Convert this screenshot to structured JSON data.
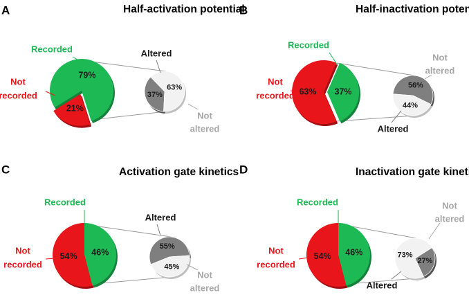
{
  "chart_data": [
    {
      "type": "pie",
      "panel_letter": "A",
      "title": "Half-activation potential",
      "main_pie": {
        "slices": [
          {
            "name": "recorded",
            "label": "Recorded",
            "value": 79,
            "value_label": "79%",
            "color": "#1db954"
          },
          {
            "name": "not-recorded",
            "label": "Not recorded",
            "label_lines": [
              "Not",
              "recorded"
            ],
            "value": 21,
            "value_label": "21%",
            "color": "#e8151b"
          }
        ]
      },
      "sub_pie": {
        "slices": [
          {
            "name": "altered",
            "label": "Altered",
            "value": 37,
            "value_label": "37%",
            "color": "#7f7f7f"
          },
          {
            "name": "not-altered",
            "label": "Not altered",
            "label_lines": [
              "Not",
              "altered"
            ],
            "value": 63,
            "value_label": "63%",
            "color": "#f2f2f2"
          }
        ]
      }
    },
    {
      "type": "pie",
      "panel_letter": "B",
      "title": "Half-inactivation potential",
      "main_pie": {
        "slices": [
          {
            "name": "recorded",
            "label": "Recorded",
            "value": 37,
            "value_label": "37%",
            "color": "#1db954"
          },
          {
            "name": "not-recorded",
            "label": "Not recorded",
            "label_lines": [
              "Not",
              "recorded"
            ],
            "value": 63,
            "value_label": "63%",
            "color": "#e8151b"
          }
        ]
      },
      "sub_pie": {
        "slices": [
          {
            "name": "altered",
            "label": "Altered",
            "value": 56,
            "value_label": "56%",
            "color": "#7f7f7f"
          },
          {
            "name": "not-altered",
            "label": "Not altered",
            "label_lines": [
              "Not",
              "altered"
            ],
            "value": 44,
            "value_label": "44%",
            "color": "#f2f2f2"
          }
        ]
      }
    },
    {
      "type": "pie",
      "panel_letter": "C",
      "title": "Activation gate kinetics",
      "main_pie": {
        "slices": [
          {
            "name": "recorded",
            "label": "Recorded",
            "value": 46,
            "value_label": "46%",
            "color": "#1db954"
          },
          {
            "name": "not-recorded",
            "label": "Not recorded",
            "label_lines": [
              "Not",
              "recorded"
            ],
            "value": 54,
            "value_label": "54%",
            "color": "#e8151b"
          }
        ]
      },
      "sub_pie": {
        "slices": [
          {
            "name": "altered",
            "label": "Altered",
            "value": 55,
            "value_label": "55%",
            "color": "#7f7f7f"
          },
          {
            "name": "not-altered",
            "label": "Not altered",
            "label_lines": [
              "Not",
              "altered"
            ],
            "value": 45,
            "value_label": "45%",
            "color": "#f2f2f2"
          }
        ]
      }
    },
    {
      "type": "pie",
      "panel_letter": "D",
      "title": "Inactivation gate kinetics",
      "main_pie": {
        "slices": [
          {
            "name": "recorded",
            "label": "Recorded",
            "value": 46,
            "value_label": "46%",
            "color": "#1db954"
          },
          {
            "name": "not-recorded",
            "label": "Not recorded",
            "label_lines": [
              "Not",
              "recorded"
            ],
            "value": 54,
            "value_label": "54%",
            "color": "#e8151b"
          }
        ]
      },
      "sub_pie": {
        "slices": [
          {
            "name": "altered",
            "label": "Altered",
            "value": 27,
            "value_label": "27%",
            "color": "#7f7f7f"
          },
          {
            "name": "not-altered",
            "label": "Not altered",
            "label_lines": [
              "Not",
              "altered"
            ],
            "value": 73,
            "value_label": "73%",
            "color": "#f2f2f2"
          }
        ]
      }
    }
  ],
  "colors": {
    "recorded_text": "#1db954",
    "not_recorded_text": "#e8151b",
    "altered_text": "#1a1a1a",
    "not_altered_text": "#a6a6a6",
    "connector": "#9a9a9a"
  }
}
